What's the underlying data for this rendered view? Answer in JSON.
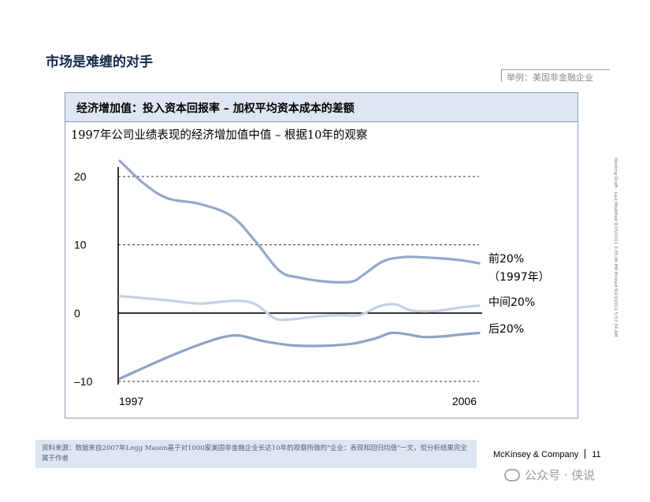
{
  "page": {
    "title": "市场是难缠的对手",
    "example_tag": "举例：美国非金融企业",
    "side_note": "Working Draft - Last Modified 9/15/2011 3:35:46 PM     Printed 9/23/2011 5:57:34 AM"
  },
  "panel": {
    "header": "经济增加值：投入资本回报率 – 加权平均资本成本的差额",
    "subtitle": "1997年公司业绩表现的经济增加值中值 – 根据10年的观察"
  },
  "footer": {
    "source_text": "资料来源：数据来自2007年Legg Mason基于对1000家美国非金融企业长达10年的观察所做的\"企业：表现和回归均值\"一文，但分析结果完全属于作者",
    "company": "McKinsey & Company",
    "page_number": "11",
    "watermark": "公众号 · 侠说"
  },
  "colors": {
    "top_line": "#94a8c9",
    "middle_line": "#c4d1e5",
    "bottom_line": "#8ea2c4",
    "panel_header_bg": "#dfe6f2",
    "title_color": "#13294b"
  },
  "chart_data": {
    "type": "line",
    "xlabel": "",
    "ylabel": "",
    "x_range": [
      1997,
      2006
    ],
    "xlim": [
      1997,
      2006
    ],
    "ylim": [
      -10,
      20
    ],
    "x_tick_labels": [
      "1997",
      "2006"
    ],
    "y_ticks": [
      20,
      10,
      0,
      -10
    ],
    "y_tick_labels": [
      "20",
      "10",
      "0",
      "–10"
    ],
    "zero_line": true,
    "dashed_gridlines_at": [
      20,
      10,
      -10
    ],
    "series": [
      {
        "name": "前20%（1997年）",
        "label_lines": [
          "前20%",
          "（1997年）"
        ],
        "color_key": "top_line",
        "x": [
          1997.0,
          1997.6,
          1998.2,
          1999.0,
          1999.8,
          2000.4,
          2001.0,
          2001.5,
          2002.2,
          2002.8,
          2003.1,
          2003.6,
          2004.1,
          2004.5,
          2005.1,
          2005.6,
          2006.0
        ],
        "y": [
          22.3,
          19.0,
          16.8,
          16.0,
          14.2,
          10.5,
          6.2,
          5.2,
          4.6,
          4.6,
          5.6,
          7.6,
          8.2,
          8.2,
          8.0,
          7.7,
          7.3
        ]
      },
      {
        "name": "中间20%",
        "label_lines": [
          "中间20%"
        ],
        "color_key": "middle_line",
        "x": [
          1997.0,
          1997.6,
          1998.3,
          1999.0,
          1999.6,
          2000.0,
          2000.4,
          2000.9,
          2001.3,
          2001.9,
          2002.5,
          2003.0,
          2003.5,
          2003.9,
          2004.3,
          2004.9,
          2005.5,
          2006.0
        ],
        "y": [
          2.5,
          2.2,
          1.8,
          1.4,
          1.7,
          1.8,
          1.3,
          -0.8,
          -0.9,
          -0.5,
          -0.3,
          -0.3,
          1.0,
          1.3,
          0.4,
          0.3,
          0.8,
          1.1
        ]
      },
      {
        "name": "后20%",
        "label_lines": [
          "后20%"
        ],
        "color_key": "bottom_line",
        "x": [
          1997.0,
          1997.6,
          1998.3,
          1999.0,
          1999.6,
          2000.0,
          2000.6,
          2001.3,
          2002.0,
          2002.8,
          2003.4,
          2003.8,
          2004.2,
          2004.6,
          2005.1,
          2005.6,
          2006.0
        ],
        "y": [
          -9.6,
          -8.0,
          -6.2,
          -4.6,
          -3.5,
          -3.3,
          -4.1,
          -4.7,
          -4.8,
          -4.5,
          -3.7,
          -2.9,
          -3.1,
          -3.5,
          -3.4,
          -3.1,
          -2.9
        ]
      }
    ]
  }
}
